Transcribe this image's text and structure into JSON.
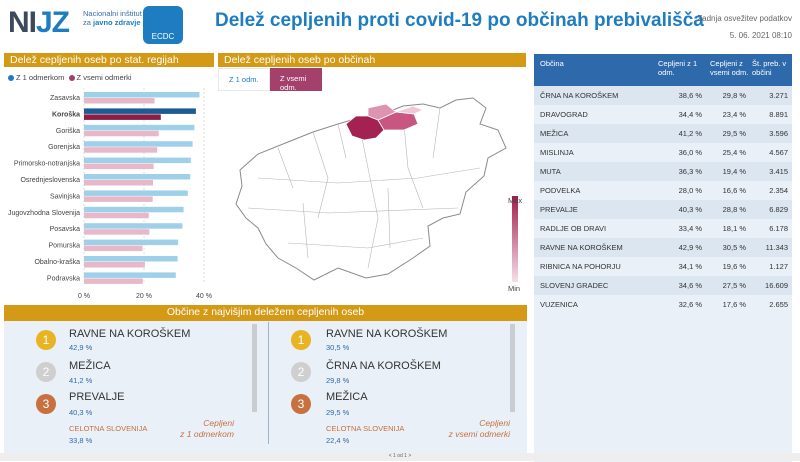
{
  "header": {
    "logo_ni": "NI",
    "logo_jz": "JZ",
    "inst1": "Nacionalni inštitut",
    "inst2": "za",
    "inst3": "javno zdravje",
    "badge": "ECDC",
    "title": "Delež cepljenih proti covid-19 po občinah prebivališča",
    "upd_label": "Zadnja osvežitev podatkov",
    "upd_date": "5. 06. 2021 08:10"
  },
  "regions": {
    "title": "Delež cepljenih oseb po stat. regijah",
    "legend1": "Z 1 odmerkom",
    "legend2": "Z vsemi odmerki",
    "ticks": [
      "0 %",
      "20 %",
      "40 %"
    ]
  },
  "map": {
    "title": "Delež cepljenih oseb po občinah",
    "tab1": "Z 1 odm.",
    "tab2": "Z vsemi odm.",
    "max": "Max",
    "min": "Min"
  },
  "table": {
    "h_obcina": "Občina",
    "h_c1": "Cepljeni z 1 odm.",
    "h_cv": "Cepljeni z vsemi odm.",
    "h_st": "Št. preb. v občini",
    "rows": [
      [
        "ČRNA NA KOROŠKEM",
        "38,6 %",
        "29,8 %",
        "3.271"
      ],
      [
        "DRAVOGRAD",
        "34,4 %",
        "23,4 %",
        "8.891"
      ],
      [
        "MEŽICA",
        "41,2 %",
        "29,5 %",
        "3.596"
      ],
      [
        "MISLINJA",
        "36,0 %",
        "25,4 %",
        "4.567"
      ],
      [
        "MUTA",
        "36,3 %",
        "19,4 %",
        "3.415"
      ],
      [
        "PODVELKA",
        "28,0 %",
        "16,6 %",
        "2.354"
      ],
      [
        "PREVALJE",
        "40,3 %",
        "28,8 %",
        "6.829"
      ],
      [
        "RADLJE OB DRAVI",
        "33,4 %",
        "18,1 %",
        "6.178"
      ],
      [
        "RAVNE NA KOROŠKEM",
        "42,9 %",
        "30,5 %",
        "11.343"
      ],
      [
        "RIBNICA NA POHORJU",
        "34,1 %",
        "19,6 %",
        "1.127"
      ],
      [
        "SLOVENJ GRADEC",
        "34,6 %",
        "27,5 %",
        "16.609"
      ],
      [
        "VUZENICA",
        "32,6 %",
        "17,6 %",
        "2.655"
      ]
    ]
  },
  "top": {
    "title": "Občine z najvišjim deležem cepljenih oseb",
    "left": [
      {
        "rank": "1",
        "name": "RAVNE NA KOROŠKEM",
        "val": "42,9 %"
      },
      {
        "rank": "2",
        "name": "MEŽICA",
        "val": "41,2 %"
      },
      {
        "rank": "3",
        "name": "PREVALJE",
        "val": "40,3 %"
      }
    ],
    "right": [
      {
        "rank": "1",
        "name": "RAVNE NA KOROŠKEM",
        "val": "30,5 %"
      },
      {
        "rank": "2",
        "name": "ČRNA NA KOROŠKEM",
        "val": "29,8 %"
      },
      {
        "rank": "3",
        "name": "MEŽICA",
        "val": "29,5 %"
      }
    ],
    "slo_label": "CELOTNA SLOVENIJA",
    "slo_left": "33,8 %",
    "slo_right": "22,4 %",
    "cap_left1": "Cepljeni",
    "cap_left2": "z 1 odmerkom",
    "cap_right1": "Cepljeni",
    "cap_right2": "z vsemi odmerki"
  },
  "footer": {
    "pager": "< 1 od 1 >"
  },
  "colors": {
    "blue": "#1e7dc1",
    "pink": "#d9a3b8",
    "gold": "#d49a16",
    "dark": "#1e5b94",
    "bronze": "#c6713f",
    "silver": "#b8b8b8"
  },
  "chart_data": {
    "type": "bar",
    "categories": [
      "Zasavska",
      "Koroška",
      "Goriška",
      "Gorenjska",
      "Primorsko-notranjska",
      "Osrednjeslovenska",
      "Savinjska",
      "Jugovzhodna Slovenija",
      "Posavska",
      "Pomurska",
      "Obalno-kraška",
      "Podravska"
    ],
    "series": [
      {
        "name": "Z 1 odmerkom",
        "values": [
          38.5,
          37.3,
          36.8,
          36.2,
          35.6,
          35.4,
          34.6,
          33.2,
          32.8,
          31.4,
          31.2,
          30.6
        ]
      },
      {
        "name": "Z vsemi odmerki",
        "values": [
          23.5,
          25.6,
          24.9,
          24.4,
          23.2,
          23.0,
          22.9,
          21.6,
          21.8,
          19.5,
          20.3,
          19.6
        ]
      }
    ],
    "highlight": "Koroška",
    "xlim": [
      0,
      40
    ],
    "xticks": [
      "0 %",
      "20 %",
      "40 %"
    ]
  }
}
